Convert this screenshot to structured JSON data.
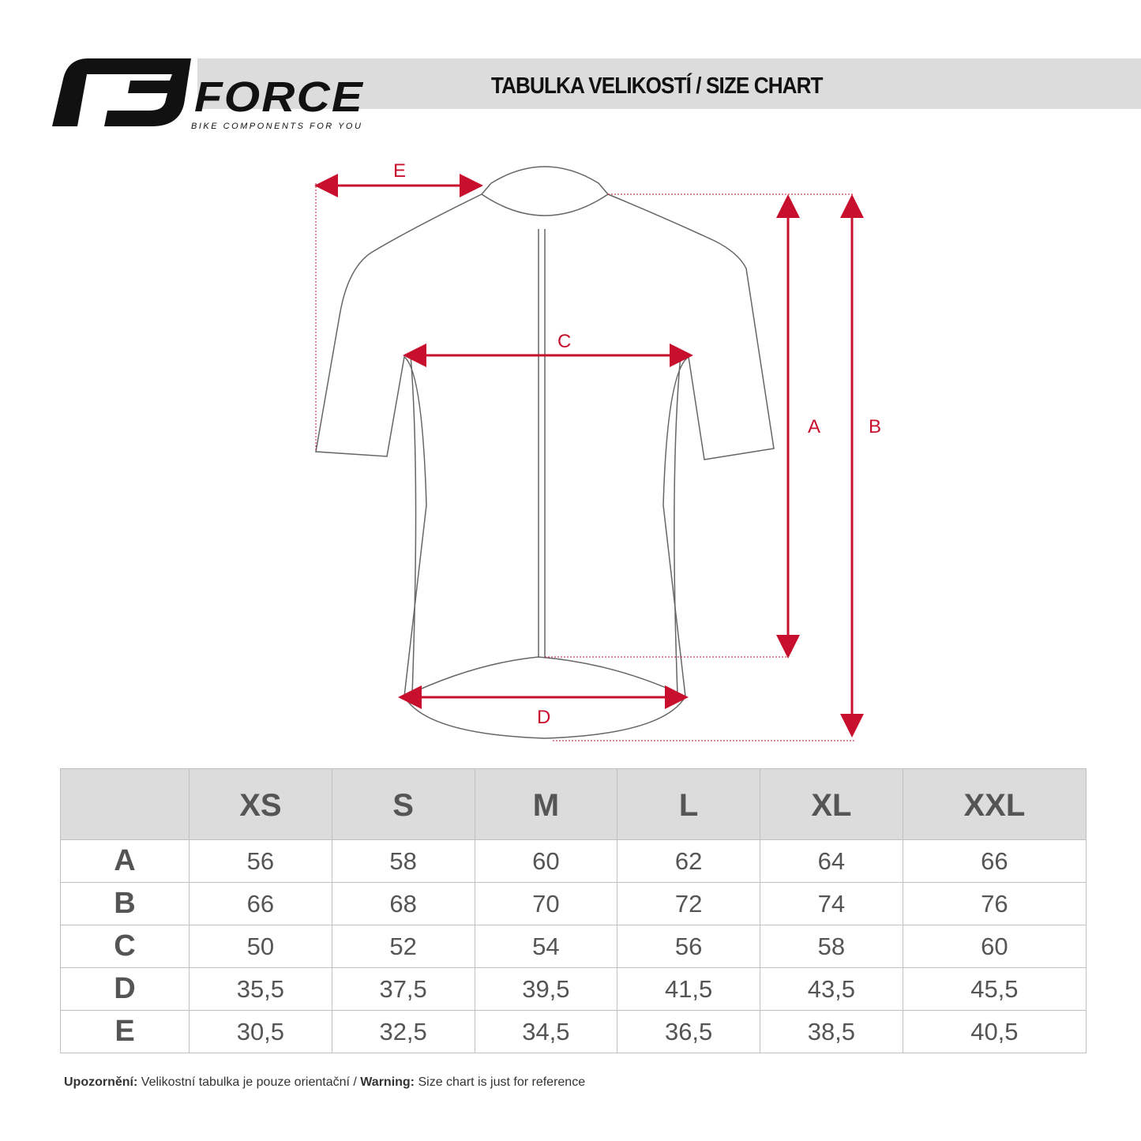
{
  "header": {
    "brand": "FORCE",
    "tagline": "BIKE COMPONENTS FOR YOU",
    "title": "TABULKA VELIKOSTÍ / SIZE CHART"
  },
  "diagram": {
    "labels": {
      "A": "A",
      "B": "B",
      "C": "C",
      "D": "D",
      "E": "E"
    },
    "arrow_color": "#c8102e",
    "outline_color": "#555555"
  },
  "table": {
    "columns": [
      "",
      "XS",
      "S",
      "M",
      "L",
      "XL",
      "XXL"
    ],
    "rows": [
      {
        "label": "A",
        "values": [
          "56",
          "58",
          "60",
          "62",
          "64",
          "66"
        ]
      },
      {
        "label": "B",
        "values": [
          "66",
          "68",
          "70",
          "72",
          "74",
          "76"
        ]
      },
      {
        "label": "C",
        "values": [
          "50",
          "52",
          "54",
          "56",
          "58",
          "60"
        ]
      },
      {
        "label": "D",
        "values": [
          "35,5",
          "37,5",
          "39,5",
          "41,5",
          "43,5",
          "45,5"
        ]
      },
      {
        "label": "E",
        "values": [
          "30,5",
          "32,5",
          "34,5",
          "36,5",
          "38,5",
          "40,5"
        ]
      }
    ]
  },
  "note": {
    "cz_label": "Upozornění:",
    "cz_text": " Velikostní tabulka je pouze orientační / ",
    "en_label": "Warning:",
    "en_text": " Size chart is just for reference"
  }
}
